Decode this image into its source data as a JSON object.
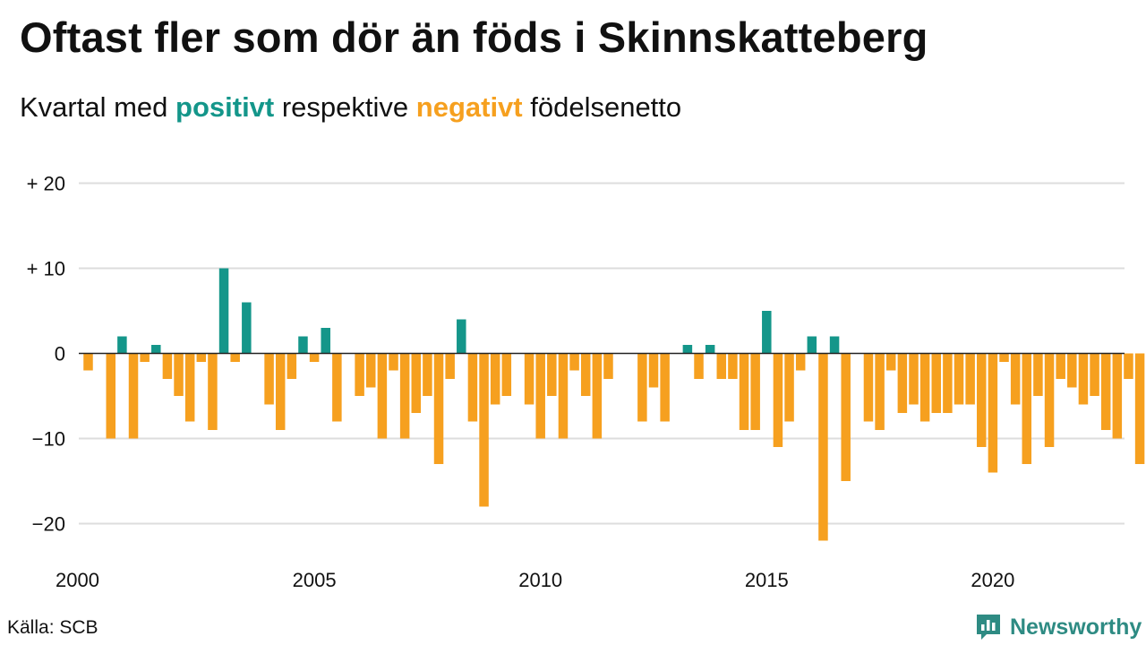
{
  "header": {
    "title": "Oftast fler som dör än föds i Skinnskatteberg",
    "subtitle_pre": "Kvartal med ",
    "subtitle_positive": "positivt",
    "subtitle_mid": " respektive ",
    "subtitle_negative": "negativt",
    "subtitle_post": " födelsenetto"
  },
  "footer": {
    "source": "Källa: SCB",
    "brand": "Newsworthy"
  },
  "colors": {
    "positive": "#14968a",
    "negative": "#f6a01f",
    "grid": "#dddddd",
    "zero_line": "#222222",
    "brand": "#2e8b83"
  },
  "chart_data": {
    "type": "bar",
    "x_start": "2000 Q1",
    "x_interval": "quarter",
    "ylim": [
      -24,
      20
    ],
    "y_ticks": [
      20,
      10,
      0,
      -10,
      -20
    ],
    "y_tick_labels": [
      "+ 20",
      "+ 10",
      "0",
      "−10",
      "−20"
    ],
    "x_ticks": [
      2000,
      2005,
      2010,
      2015,
      2020
    ],
    "x_tick_labels": [
      "2000",
      "2005",
      "2010",
      "2015",
      "2020"
    ],
    "grid": true,
    "values": [
      -2,
      0,
      -10,
      2,
      -10,
      -1,
      1,
      -3,
      -5,
      -8,
      -1,
      -9,
      10,
      -1,
      6,
      0,
      -6,
      -9,
      -3,
      2,
      -1,
      3,
      -8,
      0,
      -5,
      -4,
      -10,
      -2,
      -10,
      -7,
      -5,
      -13,
      -3,
      4,
      -8,
      -18,
      -6,
      -5,
      0,
      -6,
      -10,
      -5,
      -10,
      -2,
      -5,
      -10,
      -3,
      0,
      0,
      -8,
      -4,
      -8,
      0,
      1,
      -3,
      1,
      -3,
      -3,
      -9,
      -9,
      5,
      -11,
      -8,
      -2,
      2,
      -22,
      2,
      -15,
      0,
      -8,
      -9,
      -2,
      -7,
      -6,
      -8,
      -7,
      -7,
      -6,
      -6,
      -11,
      -14,
      -1,
      -6,
      -13,
      -5,
      -11,
      -3,
      -4,
      -6,
      -5,
      -9,
      -10,
      -3,
      -13
    ]
  }
}
